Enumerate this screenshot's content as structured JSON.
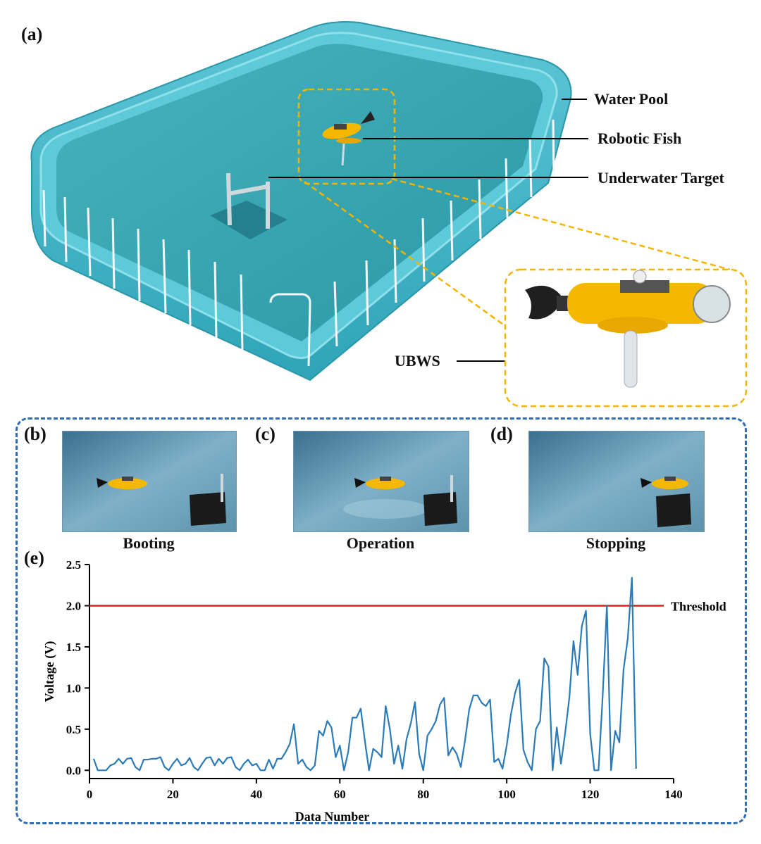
{
  "panel_a": {
    "label": "(a)",
    "callouts": {
      "water_pool": "Water Pool",
      "robotic_fish": "Robotic Fish",
      "underwater_target": "Underwater Target",
      "ubws": "UBWS"
    }
  },
  "photos": [
    {
      "label": "(b)",
      "caption": "Booting"
    },
    {
      "label": "(c)",
      "caption": "Operation"
    },
    {
      "label": "(d)",
      "caption": "Stopping"
    }
  ],
  "panel_e": {
    "label": "(e)"
  },
  "colors": {
    "pool": "#3fb6c8",
    "water": "#2aa0ad",
    "highlight_box": "#f2b400",
    "group_box": "#2f6db5",
    "series": "#2b7bb9",
    "threshold": "#e31a1c",
    "fish_body": "#f5b800"
  },
  "chart_data": {
    "type": "line",
    "xlabel": "Data Number",
    "ylabel": "Voltage (V)",
    "xlim": [
      0,
      140
    ],
    "ylim": [
      -0.1,
      2.5
    ],
    "xticks": [
      0,
      20,
      40,
      60,
      80,
      100,
      120,
      140
    ],
    "yticks": [
      0.0,
      0.5,
      1.0,
      1.5,
      2.0,
      2.5
    ],
    "grid": false,
    "threshold": {
      "value": 2.0,
      "label": "Threshold"
    },
    "series": [
      {
        "values": [
          [
            1,
            0.14
          ],
          [
            2,
            0.0
          ],
          [
            3,
            0.0
          ],
          [
            4,
            0.0
          ],
          [
            5,
            0.06
          ],
          [
            6,
            0.08
          ],
          [
            7,
            0.14
          ],
          [
            8,
            0.08
          ],
          [
            9,
            0.14
          ],
          [
            10,
            0.15
          ],
          [
            11,
            0.04
          ],
          [
            12,
            0.0
          ],
          [
            13,
            0.13
          ],
          [
            14,
            0.13
          ],
          [
            15,
            0.14
          ],
          [
            16,
            0.14
          ],
          [
            17,
            0.16
          ],
          [
            18,
            0.04
          ],
          [
            19,
            0.0
          ],
          [
            20,
            0.08
          ],
          [
            21,
            0.14
          ],
          [
            22,
            0.06
          ],
          [
            23,
            0.08
          ],
          [
            24,
            0.15
          ],
          [
            25,
            0.04
          ],
          [
            26,
            0.0
          ],
          [
            27,
            0.08
          ],
          [
            28,
            0.15
          ],
          [
            29,
            0.16
          ],
          [
            30,
            0.06
          ],
          [
            31,
            0.14
          ],
          [
            32,
            0.08
          ],
          [
            33,
            0.15
          ],
          [
            34,
            0.16
          ],
          [
            35,
            0.04
          ],
          [
            36,
            0.0
          ],
          [
            37,
            0.08
          ],
          [
            38,
            0.13
          ],
          [
            39,
            0.06
          ],
          [
            40,
            0.08
          ],
          [
            41,
            0.0
          ],
          [
            42,
            0.0
          ],
          [
            43,
            0.13
          ],
          [
            44,
            0.02
          ],
          [
            45,
            0.14
          ],
          [
            46,
            0.14
          ],
          [
            47,
            0.22
          ],
          [
            48,
            0.32
          ],
          [
            49,
            0.56
          ],
          [
            50,
            0.08
          ],
          [
            51,
            0.13
          ],
          [
            52,
            0.04
          ],
          [
            53,
            0.0
          ],
          [
            54,
            0.06
          ],
          [
            55,
            0.48
          ],
          [
            56,
            0.42
          ],
          [
            57,
            0.6
          ],
          [
            58,
            0.52
          ],
          [
            59,
            0.16
          ],
          [
            60,
            0.3
          ],
          [
            61,
            0.0
          ],
          [
            62,
            0.22
          ],
          [
            63,
            0.64
          ],
          [
            64,
            0.64
          ],
          [
            65,
            0.75
          ],
          [
            66,
            0.36
          ],
          [
            67,
            0.0
          ],
          [
            68,
            0.26
          ],
          [
            69,
            0.22
          ],
          [
            70,
            0.16
          ],
          [
            71,
            0.78
          ],
          [
            72,
            0.5
          ],
          [
            73,
            0.08
          ],
          [
            74,
            0.3
          ],
          [
            75,
            0.02
          ],
          [
            76,
            0.38
          ],
          [
            77,
            0.57
          ],
          [
            78,
            0.83
          ],
          [
            79,
            0.2
          ],
          [
            80,
            0.0
          ],
          [
            81,
            0.42
          ],
          [
            82,
            0.5
          ],
          [
            83,
            0.6
          ],
          [
            84,
            0.8
          ],
          [
            85,
            0.88
          ],
          [
            86,
            0.18
          ],
          [
            87,
            0.28
          ],
          [
            88,
            0.2
          ],
          [
            89,
            0.04
          ],
          [
            90,
            0.36
          ],
          [
            91,
            0.74
          ],
          [
            92,
            0.91
          ],
          [
            93,
            0.91
          ],
          [
            94,
            0.82
          ],
          [
            95,
            0.78
          ],
          [
            96,
            0.86
          ],
          [
            97,
            0.1
          ],
          [
            98,
            0.14
          ],
          [
            99,
            0.02
          ],
          [
            100,
            0.3
          ],
          [
            101,
            0.68
          ],
          [
            102,
            0.94
          ],
          [
            103,
            1.1
          ],
          [
            104,
            0.25
          ],
          [
            105,
            0.1
          ],
          [
            106,
            0.0
          ],
          [
            107,
            0.5
          ],
          [
            108,
            0.6
          ],
          [
            109,
            1.36
          ],
          [
            110,
            1.26
          ],
          [
            111,
            0.0
          ],
          [
            112,
            0.52
          ],
          [
            113,
            0.08
          ],
          [
            114,
            0.45
          ],
          [
            115,
            0.88
          ],
          [
            116,
            1.57
          ],
          [
            117,
            1.16
          ],
          [
            118,
            1.75
          ],
          [
            119,
            1.94
          ],
          [
            120,
            0.44
          ],
          [
            121,
            0.0
          ],
          [
            122,
            0.0
          ],
          [
            123,
            0.9
          ],
          [
            124,
            2.0
          ],
          [
            125,
            0.0
          ],
          [
            126,
            0.48
          ],
          [
            127,
            0.34
          ],
          [
            128,
            1.22
          ],
          [
            129,
            1.6
          ],
          [
            130,
            2.34
          ],
          [
            131,
            0.02
          ]
        ]
      }
    ]
  }
}
